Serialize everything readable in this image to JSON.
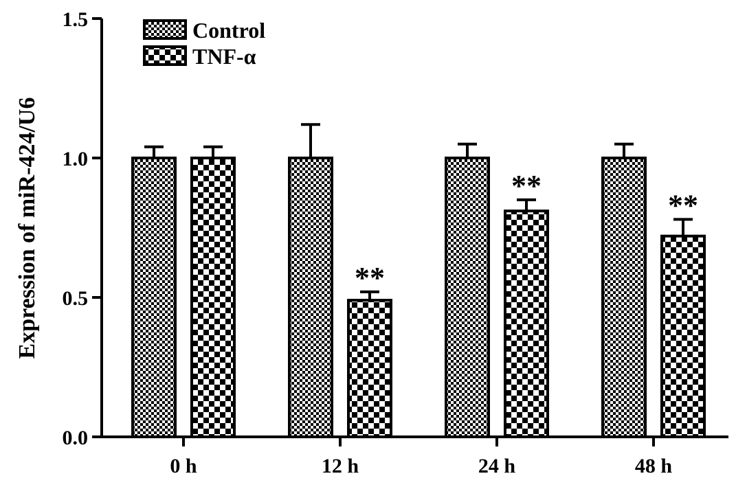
{
  "chart_data": {
    "type": "bar",
    "title": "",
    "xlabel": "",
    "ylabel": "Expression of miR-424/U6",
    "ylim": [
      0,
      1.5
    ],
    "yticks": [
      "0.0",
      "0.5",
      "1.0",
      "1.5"
    ],
    "categories": [
      "0 h",
      "12 h",
      "24 h",
      "48 h"
    ],
    "legend_position": "top-left",
    "series": [
      {
        "name": "Control",
        "pattern": "fine-checker",
        "values": [
          1.0,
          1.0,
          1.0,
          1.0
        ],
        "errors": [
          0.04,
          0.12,
          0.05,
          0.05
        ],
        "annotations": [
          "",
          "",
          "",
          ""
        ]
      },
      {
        "name": "TNF-α",
        "pattern": "coarse-checker",
        "values": [
          1.0,
          0.49,
          0.81,
          0.72
        ],
        "errors": [
          0.04,
          0.03,
          0.04,
          0.06
        ],
        "annotations": [
          "",
          "**",
          "**",
          "**"
        ]
      }
    ]
  }
}
